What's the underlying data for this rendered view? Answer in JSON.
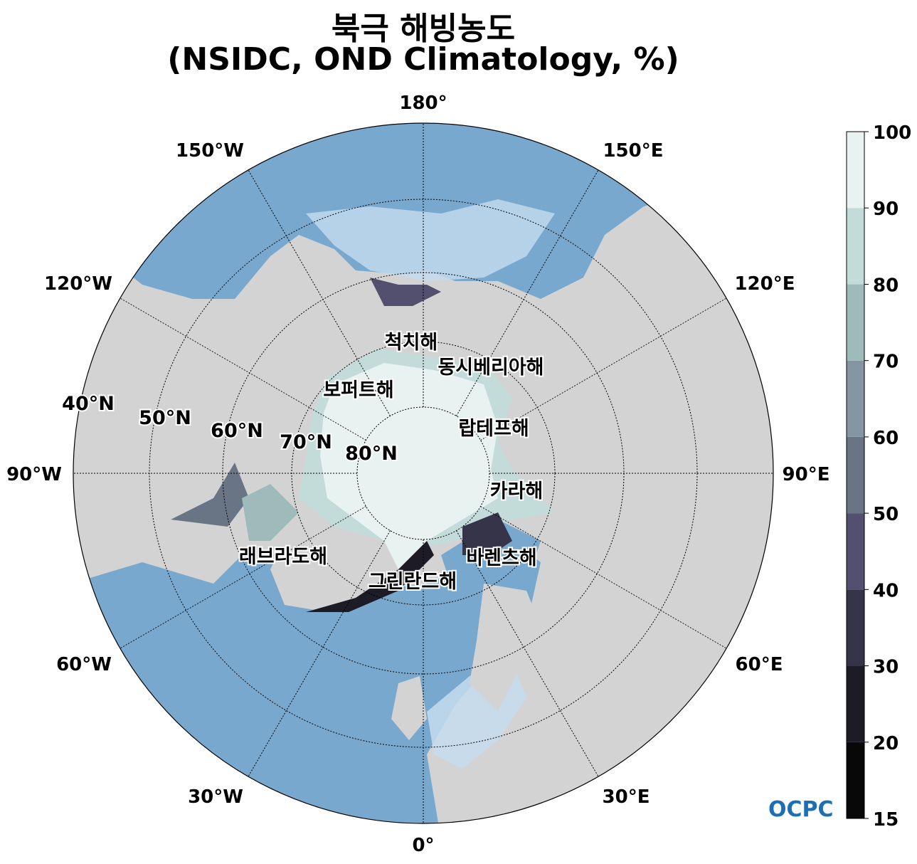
{
  "title": {
    "line1": "북극 해빙농도",
    "line2": "(NSIDC, OND Climatology, %)"
  },
  "map": {
    "projection": "north polar stereographic",
    "lat_limit": "40°N",
    "meridian_labels": [
      "180°",
      "150°E",
      "120°E",
      "90°E",
      "60°E",
      "30°E",
      "0°",
      "30°W",
      "60°W",
      "90°W",
      "120°W",
      "150°W"
    ],
    "parallel_labels": [
      "40°N",
      "50°N",
      "60°N",
      "70°N",
      "80°N"
    ],
    "sea_labels": [
      "척치해",
      "동시베리아해",
      "보퍼트해",
      "랍테프해",
      "카라해",
      "바렌츠해",
      "래브라도해",
      "그린란드해"
    ],
    "colors": {
      "land": "#d3d3d3",
      "ocean": "#78a8ce",
      "ocean_shelf": "#c6dcef",
      "lake": "#ffffff"
    }
  },
  "colorbar": {
    "ticks": [
      "15",
      "20",
      "30",
      "40",
      "50",
      "60",
      "70",
      "80",
      "90",
      "100"
    ],
    "bounds": [
      15,
      20,
      30,
      40,
      50,
      60,
      70,
      80,
      90,
      100
    ],
    "colors": [
      "#080808",
      "#1c1b26",
      "#363449",
      "#52506e",
      "#697585",
      "#8396a1",
      "#9fbabb",
      "#c3dcda",
      "#e8f2f0"
    ]
  },
  "logo": "OCPC"
}
